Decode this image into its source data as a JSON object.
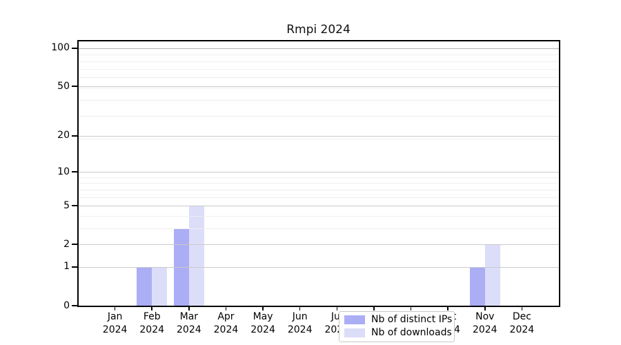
{
  "chart_data": {
    "type": "bar",
    "title": "Rmpi 2024",
    "categories": [
      "Jan",
      "Feb",
      "Mar",
      "Apr",
      "May",
      "Jun",
      "Jul",
      "Aug",
      "Sep",
      "Oct",
      "Nov",
      "Dec"
    ],
    "category_year": "2024",
    "series": [
      {
        "name": "Nb of distinct IPs",
        "color": "#abadf5",
        "values": [
          0,
          1,
          3,
          0,
          0,
          0,
          0,
          0,
          0,
          0,
          1,
          0
        ]
      },
      {
        "name": "Nb of downloads",
        "color": "#dcddf8",
        "values": [
          0,
          1,
          5,
          0,
          0,
          0,
          0,
          0,
          0,
          0,
          2,
          0
        ]
      }
    ],
    "yticks": [
      0,
      1,
      2,
      5,
      10,
      20,
      50,
      100
    ],
    "ylim": [
      0,
      100
    ],
    "yscale": "log1p",
    "grid": "horizontal major and log-minor gridlines",
    "legend_position": "bottom center inside plot"
  },
  "colors": {
    "background": "#ffffff",
    "axis": "#000000",
    "grid_major": "#c9c9c9",
    "grid_major_top": "#b2b2b2",
    "grid_minor": "#efefef",
    "legend_border": "#c8c8c8",
    "title_text": "#111111"
  }
}
